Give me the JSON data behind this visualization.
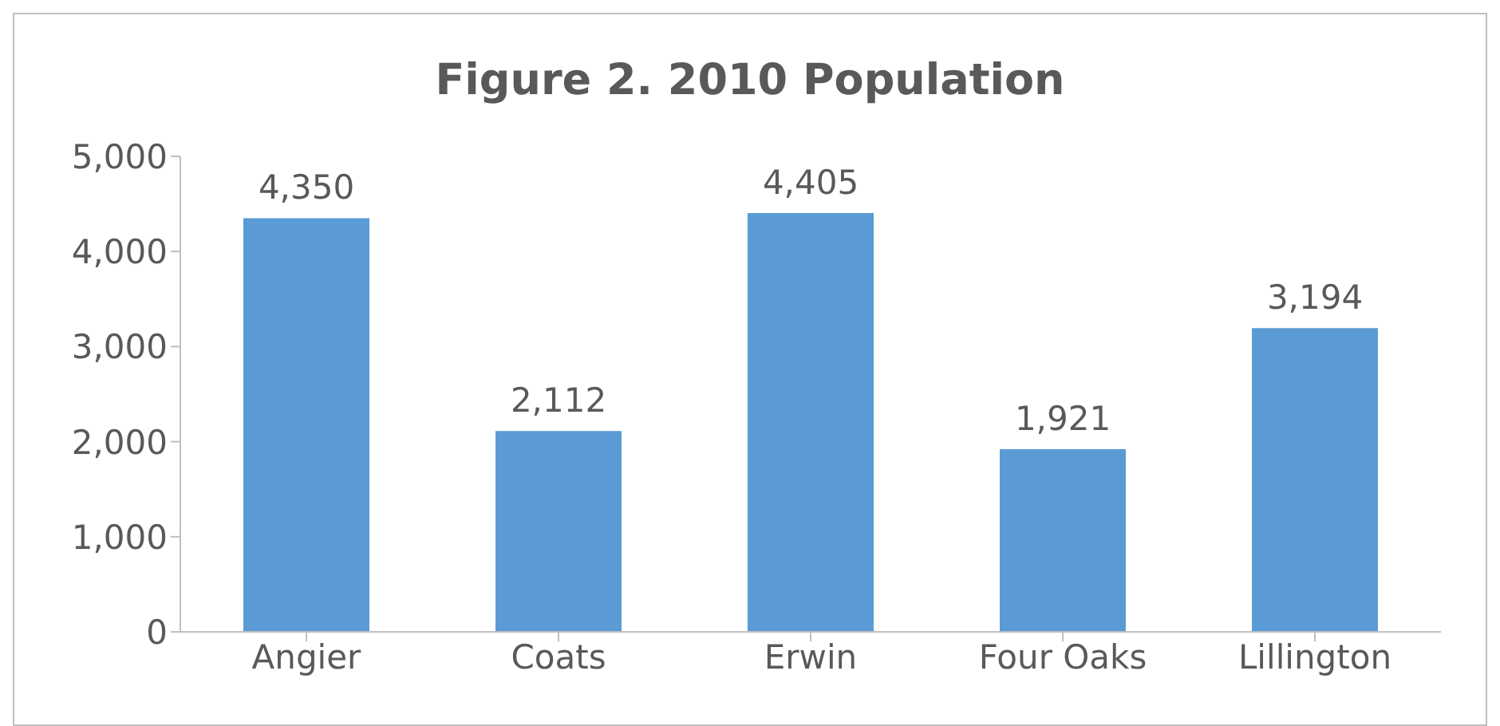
{
  "chart_data": {
    "type": "bar",
    "title": "Figure 2. 2010 Population",
    "categories": [
      "Angier",
      "Coats",
      "Erwin",
      "Four Oaks",
      "Lillington"
    ],
    "values": [
      4350,
      2112,
      4405,
      1921,
      3194
    ],
    "value_labels": [
      "4,350",
      "2,112",
      "4,405",
      "1,921",
      "3,194"
    ],
    "color": "#5b9bd5",
    "ylim": [
      0,
      5000
    ],
    "yticks": [
      0,
      {
        "value": 1000,
        "label": "1,000"
      },
      {
        "value": 2000,
        "label": "2,000"
      },
      {
        "value": 3000,
        "label": "3,000"
      },
      {
        "value": 4000,
        "label": "4,000"
      },
      {
        "value": 5000,
        "label": "5,000"
      }
    ],
    "grid": false
  }
}
